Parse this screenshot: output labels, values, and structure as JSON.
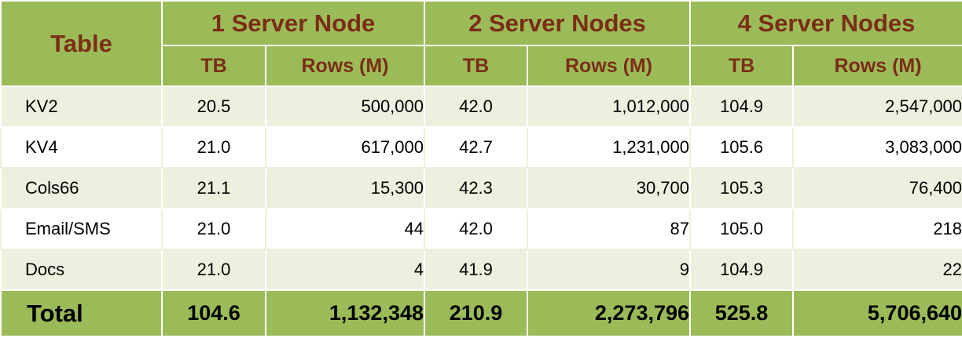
{
  "header": {
    "table_label": "Table",
    "groups": [
      "1 Server Node",
      "2 Server Nodes",
      "4 Server Nodes"
    ],
    "tb_label": "TB",
    "rows_label": "Rows (M)"
  },
  "rows": [
    {
      "name": "KV2",
      "c": [
        "20.5",
        "500,000",
        "42.0",
        "1,012,000",
        "104.9",
        "2,547,000"
      ]
    },
    {
      "name": "KV4",
      "c": [
        "21.0",
        "617,000",
        "42.7",
        "1,231,000",
        "105.6",
        "3,083,000"
      ]
    },
    {
      "name": "Cols66",
      "c": [
        "21.1",
        "15,300",
        "42.3",
        "30,700",
        "105.3",
        "76,400"
      ]
    },
    {
      "name": "Email/SMS",
      "c": [
        "21.0",
        "44",
        "42.0",
        "87",
        "105.0",
        "218"
      ]
    },
    {
      "name": "Docs",
      "c": [
        "21.0",
        "4",
        "41.9",
        "9",
        "104.9",
        "22"
      ]
    }
  ],
  "total": {
    "name": "Total",
    "c": [
      "104.6",
      "1,132,348",
      "210.9",
      "2,273,796",
      "525.8",
      "5,706,640"
    ]
  }
}
